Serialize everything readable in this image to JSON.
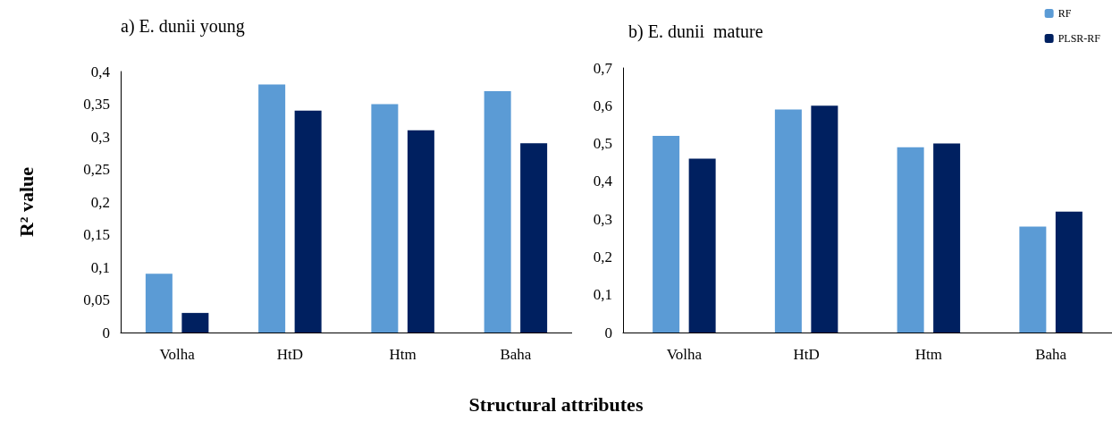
{
  "chart_data": [
    {
      "type": "bar",
      "title": "a) E. dunii young",
      "ylabel": "R² value",
      "xlabel": "Structural attributes",
      "categories": [
        "Volha",
        "HtD",
        "Htm",
        "Baha"
      ],
      "series": [
        {
          "color": "#5b9bd5",
          "values": [
            0.09,
            0.38,
            0.35,
            0.37
          ]
        },
        {
          "color": "#002060",
          "values": [
            0.03,
            0.34,
            0.31,
            0.29
          ]
        }
      ],
      "ylim": [
        0,
        0.4
      ],
      "yticks": [
        0,
        {
          "value": 0.05,
          "label": "0,05"
        },
        {
          "value": 0.1,
          "label": "0,1"
        },
        {
          "value": 0.15,
          "label": "0,15"
        },
        {
          "value": 0.2,
          "label": "0,2"
        },
        {
          "value": 0.25,
          "label": "0,25"
        },
        {
          "value": 0.3,
          "label": "0,3"
        },
        {
          "value": 0.35,
          "label": "0,35"
        },
        {
          "value": 0.4,
          "label": "0,4"
        }
      ],
      "grid": false,
      "legend": false
    },
    {
      "type": "bar",
      "title": "b) E. dunii  mature",
      "categories": [
        "Volha",
        "HtD",
        "Htm",
        "Baha"
      ],
      "series": [
        {
          "name": "RF",
          "color": "#5b9bd5",
          "values": [
            0.52,
            0.59,
            0.49,
            0.28
          ]
        },
        {
          "name": "PLSR-RF",
          "color": "#002060",
          "values": [
            0.46,
            0.6,
            0.5,
            0.32
          ]
        }
      ],
      "ylim": [
        0,
        0.7
      ],
      "yticks": [
        0,
        {
          "value": 0.1,
          "label": "0,1"
        },
        {
          "value": 0.2,
          "label": "0,2"
        },
        {
          "value": 0.3,
          "label": "0,3"
        },
        {
          "value": 0.4,
          "label": "0,4"
        },
        {
          "value": 0.5,
          "label": "0,5"
        },
        {
          "value": 0.6,
          "label": "0,6"
        },
        {
          "value": 0.7,
          "label": "0,7"
        }
      ],
      "grid": false,
      "legend": "top right"
    }
  ]
}
